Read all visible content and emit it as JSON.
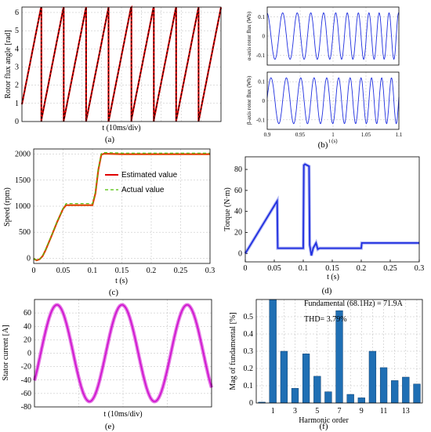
{
  "colors": {
    "red": "#e00000",
    "black": "#000000",
    "blue": "#1f2fe0",
    "green": "#4cc000",
    "orange": "#e04000",
    "magenta": "#cc00cc",
    "bar": "#1f6fb4"
  },
  "chart_data": [
    {
      "id": "a",
      "type": "line",
      "caption": "(a)",
      "xlabel": "t (10ms/div)",
      "ylabel": "Rotor flux angle [rad]",
      "yticks": [
        "0",
        "1",
        "2",
        "3",
        "4",
        "5",
        "6"
      ],
      "ylim": [
        0,
        6.3
      ],
      "xlim": [
        0,
        100
      ],
      "grid": true,
      "sawtooth": {
        "period_ms": 11.3,
        "phase_ms": 1.7,
        "max": 6.283
      },
      "series": [
        {
          "name": "",
          "color": "red",
          "dash": "3,2"
        },
        {
          "name": "",
          "color": "black"
        }
      ]
    },
    {
      "id": "b",
      "type": "line",
      "caption": "(b)",
      "xlabel": "t (s)",
      "xticks": [
        "0.9",
        "0.95",
        "1",
        "1.05",
        "1.1"
      ],
      "xlim": [
        0.9,
        1.1
      ],
      "subplots": [
        {
          "ylabel": "α-axis rotor flux (Wb)",
          "yticks": [
            "-0.1",
            "0",
            "0.1"
          ],
          "ylim": [
            -0.15,
            0.15
          ],
          "amplitude": 0.12,
          "phase": 1.57
        },
        {
          "ylabel": "β-axis rotor flux (Wb)",
          "yticks": [
            "-0.1",
            "0",
            "0.1"
          ],
          "ylim": [
            -0.15,
            0.15
          ],
          "amplitude": 0.12,
          "phase": 0
        }
      ],
      "freq_start_hz": 40,
      "freq_end_hz": 70
    },
    {
      "id": "c",
      "type": "line",
      "caption": "(c)",
      "xlabel": "t (s)",
      "ylabel": "Speed (rpm)",
      "xticks": [
        "0",
        "0.05",
        "0.1",
        "0.15",
        "0.2",
        "0.25",
        "0.3"
      ],
      "xlim": [
        0,
        0.3
      ],
      "yticks": [
        "0",
        "500",
        "1000",
        "1500",
        "2000"
      ],
      "ylim": [
        -100,
        2100
      ],
      "grid": true,
      "legend": [
        "Estimated value",
        "Actual value"
      ],
      "series": [
        {
          "name": "Estimated value",
          "color": "red",
          "x": [
            0,
            0.005,
            0.01,
            0.015,
            0.02,
            0.03,
            0.04,
            0.05,
            0.055,
            0.06,
            0.08,
            0.1,
            0.105,
            0.11,
            0.115,
            0.12,
            0.15,
            0.2,
            0.25,
            0.3
          ],
          "y": [
            -10,
            -40,
            -20,
            40,
            150,
            420,
            700,
            950,
            1020,
            1020,
            1020,
            1020,
            1250,
            1700,
            1990,
            2010,
            2000,
            2000,
            2000,
            2000
          ]
        },
        {
          "name": "Actual value",
          "color": "green",
          "x": [
            0,
            0.005,
            0.01,
            0.015,
            0.02,
            0.03,
            0.04,
            0.05,
            0.055,
            0.06,
            0.08,
            0.1,
            0.105,
            0.11,
            0.115,
            0.12,
            0.15,
            0.2,
            0.25,
            0.3
          ],
          "y": [
            -10,
            -30,
            -15,
            45,
            160,
            430,
            710,
            960,
            1050,
            1050,
            1050,
            1050,
            1280,
            1730,
            2010,
            2030,
            2020,
            2020,
            2020,
            2020
          ]
        }
      ]
    },
    {
      "id": "d",
      "type": "line",
      "caption": "(d)",
      "xlabel": "t (s)",
      "ylabel": "Torque (N·m)",
      "xticks": [
        "0",
        "0.05",
        "0.1",
        "0.15",
        "0.2",
        "0.25",
        "0.3"
      ],
      "xlim": [
        0,
        0.3
      ],
      "yticks": [
        "0",
        "20",
        "40",
        "60",
        "80"
      ],
      "ylim": [
        -8,
        92
      ],
      "series": [
        {
          "name": "",
          "color": "blue",
          "x": [
            0,
            0.055,
            0.056,
            0.1,
            0.101,
            0.103,
            0.11,
            0.1111,
            0.114,
            0.117,
            0.122,
            0.125,
            0.128,
            0.2,
            0.201,
            0.3
          ],
          "y": [
            0,
            50,
            5,
            5,
            84,
            85,
            83,
            8,
            -2,
            5,
            10,
            4,
            5,
            5,
            10,
            10
          ]
        }
      ]
    },
    {
      "id": "e",
      "type": "line",
      "caption": "(e)",
      "xlabel": "t (10ms/div)",
      "ylabel": "Stator current [A]",
      "yticks": [
        "-80",
        "-60",
        "-40",
        "-20",
        "0",
        "20",
        "40",
        "60"
      ],
      "ylim": [
        -80,
        80
      ],
      "grid": true,
      "series": [
        {
          "name": "",
          "color": "magenta",
          "amplitude": 72,
          "period_ms": 14.7,
          "span_ms": 40
        }
      ]
    },
    {
      "id": "f",
      "type": "bar",
      "caption": "(f)",
      "xlabel": "Harmonic order",
      "ylabel": "Mag of fundamental [%]",
      "xticks": [
        "1",
        "3",
        "5",
        "7",
        "9",
        "11",
        "13"
      ],
      "yticks": [
        "0",
        "0.1",
        "0.2",
        "0.3",
        "0.4",
        "0.5"
      ],
      "ylim": [
        0,
        0.6
      ],
      "grid": true,
      "annotations": [
        "Fundamental (68.1Hz) = 71.9A",
        "THD= 3.79%"
      ],
      "categories": [
        0,
        1,
        2,
        3,
        4,
        5,
        6,
        7,
        8,
        9,
        10,
        11,
        12,
        13,
        14
      ],
      "values": [
        0.005,
        0.6,
        0.3,
        0.085,
        0.285,
        0.155,
        0.065,
        0.535,
        0.05,
        0.03,
        0.3,
        0.205,
        0.13,
        0.15,
        0.11
      ]
    }
  ]
}
